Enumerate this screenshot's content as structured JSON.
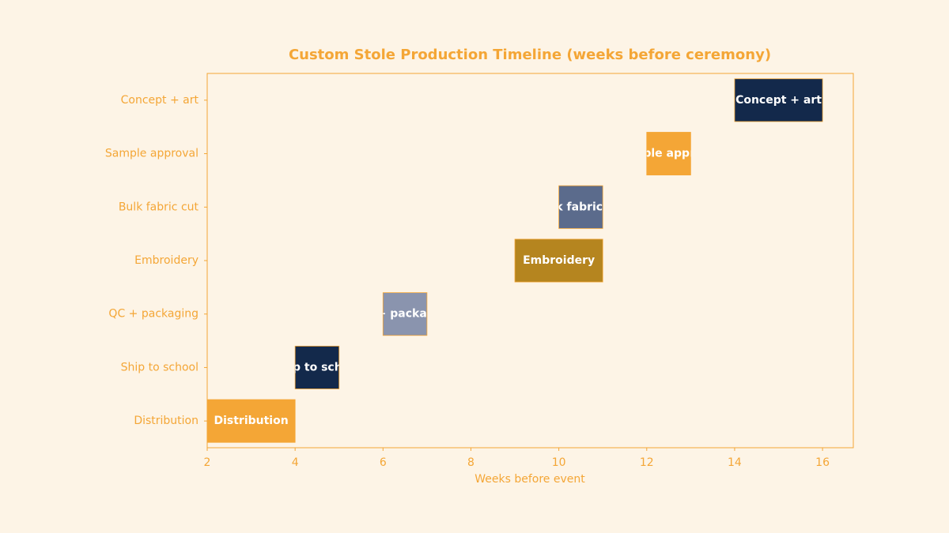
{
  "chart_data": {
    "type": "bar",
    "orientation": "horizontal",
    "title": "Custom Stole Production Timeline (weeks before ceremony)",
    "xlabel": "Weeks before event",
    "ylabel": "",
    "xlim": [
      2,
      16.7
    ],
    "xticks": [
      2,
      4,
      6,
      8,
      10,
      12,
      14,
      16
    ],
    "grid": false,
    "categories": [
      "Concept + art",
      "Sample approval",
      "Bulk fabric cut",
      "Embroidery",
      "QC + packaging",
      "Ship to school",
      "Distribution"
    ],
    "tasks": [
      {
        "label": "Concept + art",
        "start": 14,
        "end": 16,
        "color": "#13294b"
      },
      {
        "label": "Sample approval",
        "start": 12,
        "end": 13,
        "color": "#f4a636"
      },
      {
        "label": "Bulk fabric cut",
        "start": 10,
        "end": 11,
        "color": "#5b6b8c"
      },
      {
        "label": "Embroidery",
        "start": 9,
        "end": 11,
        "color": "#b5851f"
      },
      {
        "label": "QC + packaging",
        "start": 6,
        "end": 7,
        "color": "#8a94ae"
      },
      {
        "label": "Ship to school",
        "start": 4,
        "end": 5,
        "color": "#13294b"
      },
      {
        "label": "Distribution",
        "start": 2,
        "end": 4,
        "color": "#f4a636"
      }
    ],
    "colors": {
      "accent": "#f4a636",
      "background": "#fdf4e6",
      "bar_text": "#ffffff"
    }
  }
}
